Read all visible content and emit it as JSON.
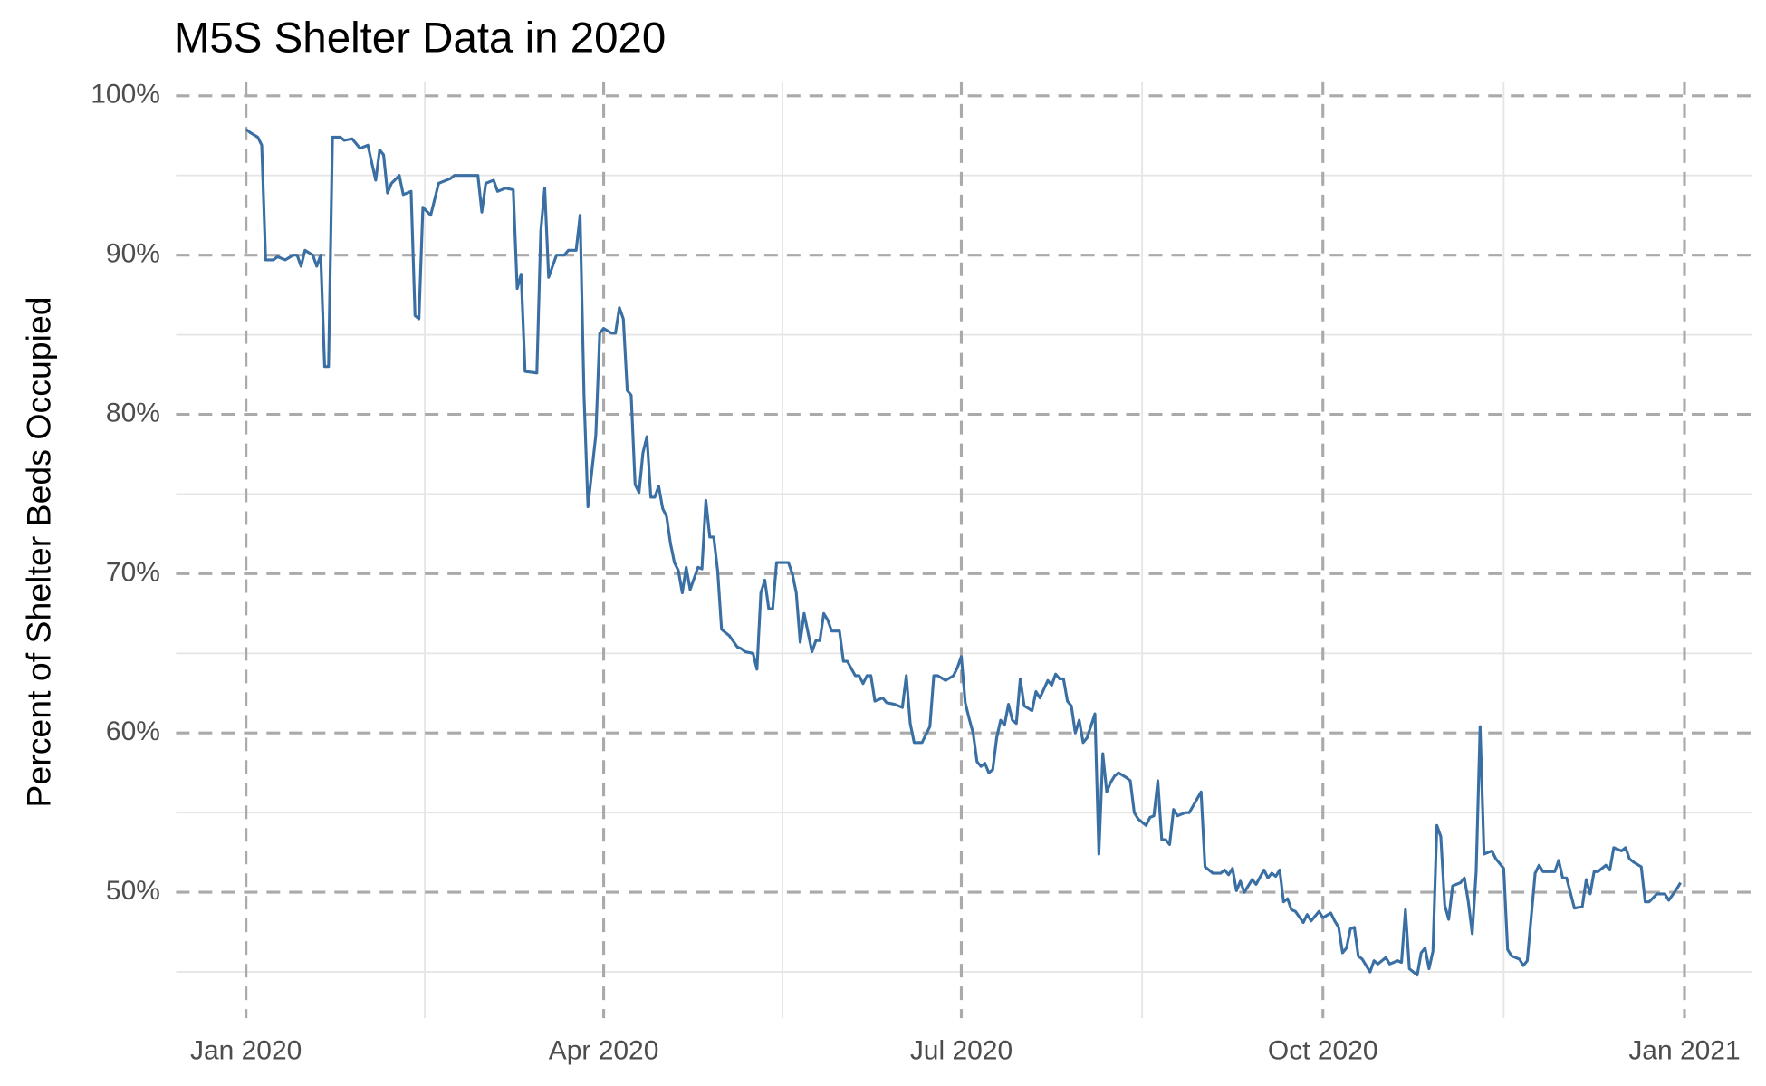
{
  "chart_data": {
    "type": "line",
    "title": "M5S Shelter Data in 2020",
    "y_label": "Percent of Shelter Beds Occupied",
    "color": "#3a6fa4",
    "grid": true,
    "xlim": [
      -17.8,
      383.1
    ],
    "ylim": [
      42.1,
      100.9
    ],
    "xticks": [
      {
        "value": 0,
        "label": "Jan 2020"
      },
      {
        "value": 91,
        "label": "Apr 2020"
      },
      {
        "value": 182,
        "label": "Jul 2020"
      },
      {
        "value": 274,
        "label": "Oct 2020"
      },
      {
        "value": 366,
        "label": "Jan 2021"
      }
    ],
    "x_minor_ticks": [
      45.5,
      136.5,
      228,
      320
    ],
    "yticks": [
      {
        "value": 50,
        "label": "50%"
      },
      {
        "value": 60,
        "label": "60%"
      },
      {
        "value": 70,
        "label": "70%"
      },
      {
        "value": 80,
        "label": "80%"
      },
      {
        "value": 90,
        "label": "90%"
      },
      {
        "value": 100,
        "label": "100%"
      }
    ],
    "y_minor_ticks": [
      45,
      55,
      65,
      75,
      85,
      95
    ],
    "x": [
      0,
      1,
      3,
      4,
      5,
      7,
      8,
      10,
      12,
      13,
      14,
      15,
      17,
      18,
      19,
      20,
      21,
      22,
      24,
      25,
      27,
      29,
      31,
      33,
      34,
      35,
      36,
      37,
      39,
      40,
      42,
      43,
      44,
      45,
      47,
      49,
      51,
      52,
      53,
      56,
      59,
      60,
      61,
      63,
      64,
      66,
      68,
      69,
      70,
      71,
      74,
      75,
      76,
      77,
      79,
      81,
      82,
      84,
      85,
      86,
      87,
      89,
      90,
      91,
      93,
      94,
      95,
      96,
      97,
      98,
      99,
      100,
      101,
      102,
      103,
      104,
      105,
      106,
      107,
      108,
      109,
      110,
      111,
      112,
      113,
      115,
      116,
      117,
      118,
      119,
      120,
      121,
      123,
      125,
      126,
      127,
      129,
      130,
      131,
      132,
      133,
      134,
      135,
      138,
      139,
      140,
      141,
      142,
      144,
      145,
      146,
      147,
      148,
      149,
      151,
      152,
      153,
      155,
      156,
      157,
      158,
      159,
      160,
      162,
      163,
      165,
      167,
      168,
      169,
      170,
      172,
      174,
      175,
      176,
      178,
      180,
      181,
      182,
      183,
      184,
      185,
      186,
      187,
      188,
      189,
      190,
      191,
      192,
      193,
      194,
      195,
      196,
      197,
      198,
      200,
      201,
      202,
      204,
      205,
      206,
      207,
      208,
      209,
      210,
      211,
      212,
      213,
      214,
      216,
      217,
      218,
      219,
      220,
      221,
      222,
      224,
      225,
      226,
      227,
      229,
      230,
      231,
      232,
      233,
      234,
      235,
      236,
      237,
      239,
      240,
      243,
      244,
      246,
      248,
      249,
      250,
      251,
      252,
      253,
      254,
      256,
      257,
      259,
      260,
      261,
      262,
      263,
      264,
      265,
      266,
      267,
      269,
      270,
      271,
      273,
      274,
      276,
      277,
      278,
      279,
      280,
      281,
      282,
      283,
      284,
      286,
      287,
      288,
      290,
      291,
      293,
      294,
      295,
      296,
      298,
      299,
      300,
      301,
      302,
      303,
      304,
      305,
      306,
      307,
      309,
      310,
      311,
      312,
      313,
      314,
      315,
      317,
      318,
      320,
      321,
      322,
      324,
      325,
      326,
      328,
      329,
      330,
      332,
      333,
      334,
      335,
      336,
      338,
      340,
      341,
      342,
      343,
      344,
      346,
      347,
      348,
      350,
      351,
      352,
      353,
      355,
      356,
      357,
      359,
      361,
      362,
      364,
      365
    ],
    "values": [
      97.9,
      97.7,
      97.4,
      96.9,
      89.7,
      89.7,
      89.9,
      89.7,
      90.0,
      90.0,
      89.3,
      90.3,
      90.0,
      89.3,
      90.0,
      83.0,
      83.0,
      97.4,
      97.4,
      97.2,
      97.3,
      96.7,
      96.9,
      94.7,
      96.6,
      96.3,
      93.9,
      94.5,
      95.0,
      93.8,
      94.0,
      86.2,
      86.0,
      93.0,
      92.5,
      94.5,
      94.7,
      94.8,
      95.0,
      95.0,
      95.0,
      92.7,
      94.5,
      94.7,
      94.0,
      94.2,
      94.1,
      87.9,
      88.8,
      82.7,
      82.6,
      91.5,
      94.2,
      88.6,
      90.0,
      90.0,
      90.3,
      90.3,
      92.5,
      81.2,
      74.2,
      78.7,
      85.1,
      85.4,
      85.1,
      85.1,
      86.7,
      86.0,
      81.5,
      81.2,
      75.6,
      75.1,
      77.6,
      78.6,
      74.8,
      74.8,
      75.5,
      74.1,
      73.6,
      71.9,
      70.7,
      70.2,
      68.8,
      70.4,
      69.0,
      70.4,
      70.3,
      74.6,
      72.3,
      72.3,
      70.2,
      66.5,
      66.1,
      65.4,
      65.3,
      65.1,
      65.0,
      64.0,
      68.8,
      69.6,
      67.8,
      67.8,
      70.7,
      70.7,
      70.0,
      68.8,
      65.7,
      67.5,
      65.1,
      65.8,
      65.8,
      67.5,
      67.1,
      66.4,
      66.4,
      64.5,
      64.5,
      63.6,
      63.6,
      63.1,
      63.6,
      63.6,
      62.0,
      62.2,
      61.9,
      61.8,
      61.6,
      63.6,
      60.6,
      59.4,
      59.4,
      60.4,
      63.6,
      63.6,
      63.3,
      63.6,
      64.1,
      64.8,
      61.9,
      60.9,
      60.0,
      58.2,
      57.9,
      58.1,
      57.5,
      57.7,
      59.7,
      60.8,
      60.5,
      61.8,
      60.8,
      60.6,
      63.4,
      61.7,
      61.4,
      62.6,
      62.2,
      63.3,
      63.0,
      63.7,
      63.4,
      63.4,
      62.0,
      61.7,
      60.0,
      60.8,
      59.4,
      59.7,
      61.2,
      52.4,
      58.7,
      56.3,
      56.9,
      57.3,
      57.5,
      57.2,
      57.0,
      55.0,
      54.6,
      54.2,
      54.7,
      54.8,
      57.0,
      53.3,
      53.3,
      53.0,
      55.2,
      54.8,
      55.0,
      55.0,
      56.3,
      51.6,
      51.2,
      51.2,
      51.4,
      51.1,
      51.5,
      50.1,
      50.7,
      50.0,
      50.8,
      50.5,
      51.4,
      50.9,
      51.2,
      51.0,
      51.4,
      49.4,
      49.6,
      48.9,
      48.8,
      48.1,
      48.6,
      48.2,
      48.8,
      48.4,
      48.7,
      48.2,
      47.8,
      46.2,
      46.5,
      47.7,
      47.8,
      46.0,
      45.8,
      45.0,
      45.7,
      45.5,
      45.9,
      45.5,
      45.7,
      45.6,
      48.9,
      45.2,
      44.8,
      46.2,
      46.5,
      45.2,
      46.3,
      54.2,
      53.5,
      49.2,
      48.3,
      50.4,
      50.6,
      50.9,
      49.4,
      47.4,
      51.3,
      60.4,
      52.4,
      52.6,
      52.1,
      51.5,
      46.4,
      46.0,
      45.8,
      45.4,
      45.7,
      51.2,
      51.7,
      51.3,
      51.3,
      51.3,
      52.0,
      50.9,
      50.9,
      49.0,
      49.1,
      50.8,
      49.9,
      51.3,
      51.3,
      51.7,
      51.4,
      52.8,
      52.6,
      52.8,
      52.1,
      51.9,
      51.6,
      49.4,
      49.4,
      49.9,
      49.9,
      49.5,
      50.2,
      50.6
    ]
  }
}
